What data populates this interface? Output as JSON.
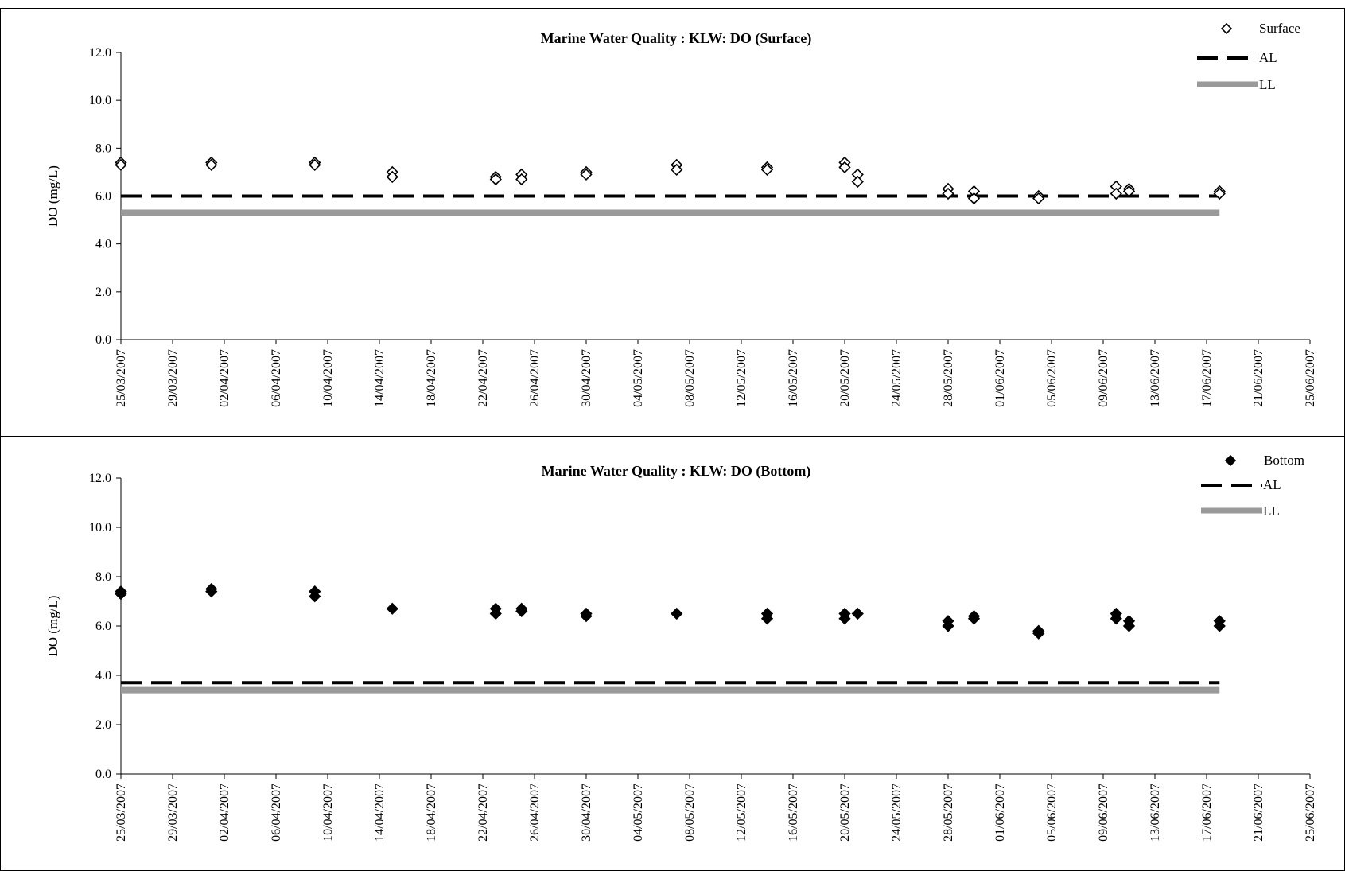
{
  "chart_data": [
    {
      "type": "scatter",
      "title": "Marine Water Quality : KLW: DO (Surface)",
      "xlabel": "",
      "ylabel": "DO (mg/L)",
      "ylim": [
        0,
        12
      ],
      "yticks": [
        "0.0",
        "2.0",
        "4.0",
        "6.0",
        "8.0",
        "10.0",
        "12.0"
      ],
      "xlim": [
        "25/03/2007",
        "25/06/2007"
      ],
      "xticks": [
        "25/03/2007",
        "29/03/2007",
        "02/04/2007",
        "06/04/2007",
        "10/04/2007",
        "14/04/2007",
        "18/04/2007",
        "22/04/2007",
        "26/04/2007",
        "30/04/2007",
        "04/05/2007",
        "08/05/2007",
        "12/05/2007",
        "16/05/2007",
        "20/05/2007",
        "24/05/2007",
        "28/05/2007",
        "01/06/2007",
        "05/06/2007",
        "09/06/2007",
        "13/06/2007",
        "17/06/2007",
        "21/06/2007",
        "25/06/2007"
      ],
      "grid": false,
      "legend": "top-right",
      "legend_entries": [
        "Surface",
        "AL",
        "LL"
      ],
      "marker": "open-diamond",
      "series": [
        {
          "name": "Surface",
          "x": [
            "25/03/2007",
            "25/03/2007",
            "01/04/2007",
            "01/04/2007",
            "09/04/2007",
            "09/04/2007",
            "15/04/2007",
            "15/04/2007",
            "23/04/2007",
            "23/04/2007",
            "25/04/2007",
            "25/04/2007",
            "30/04/2007",
            "30/04/2007",
            "07/05/2007",
            "07/05/2007",
            "14/05/2007",
            "14/05/2007",
            "20/05/2007",
            "20/05/2007",
            "21/05/2007",
            "21/05/2007",
            "28/05/2007",
            "28/05/2007",
            "30/05/2007",
            "30/05/2007",
            "04/06/2007",
            "04/06/2007",
            "10/06/2007",
            "10/06/2007",
            "11/06/2007",
            "11/06/2007",
            "18/06/2007",
            "18/06/2007"
          ],
          "y": [
            7.4,
            7.3,
            7.4,
            7.3,
            7.4,
            7.3,
            7.0,
            6.8,
            6.8,
            6.7,
            6.9,
            6.7,
            7.0,
            6.9,
            7.3,
            7.1,
            7.2,
            7.1,
            7.4,
            7.2,
            6.9,
            6.6,
            6.3,
            6.1,
            6.2,
            5.9,
            6.0,
            5.9,
            6.4,
            6.1,
            6.3,
            6.2,
            6.2,
            6.1
          ]
        },
        {
          "name": "AL",
          "x": [
            "25/03/2007",
            "18/06/2007"
          ],
          "y": [
            6.0,
            6.0
          ]
        },
        {
          "name": "LL",
          "x": [
            "25/03/2007",
            "18/06/2007"
          ],
          "y": [
            5.3,
            5.3
          ]
        }
      ]
    },
    {
      "type": "scatter",
      "title": "Marine Water Quality : KLW: DO (Bottom)",
      "xlabel": "",
      "ylabel": "DO (mg/L)",
      "ylim": [
        0,
        12
      ],
      "yticks": [
        "0.0",
        "2.0",
        "4.0",
        "6.0",
        "8.0",
        "10.0",
        "12.0"
      ],
      "xlim": [
        "25/03/2007",
        "25/06/2007"
      ],
      "xticks": [
        "25/03/2007",
        "29/03/2007",
        "02/04/2007",
        "06/04/2007",
        "10/04/2007",
        "14/04/2007",
        "18/04/2007",
        "22/04/2007",
        "26/04/2007",
        "30/04/2007",
        "04/05/2007",
        "08/05/2007",
        "12/05/2007",
        "16/05/2007",
        "20/05/2007",
        "24/05/2007",
        "28/05/2007",
        "01/06/2007",
        "05/06/2007",
        "09/06/2007",
        "13/06/2007",
        "17/06/2007",
        "21/06/2007",
        "25/06/2007"
      ],
      "grid": false,
      "legend": "top-right",
      "legend_entries": [
        "Bottom",
        "AL",
        "LL"
      ],
      "marker": "filled-diamond",
      "series": [
        {
          "name": "Bottom",
          "x": [
            "25/03/2007",
            "25/03/2007",
            "01/04/2007",
            "01/04/2007",
            "09/04/2007",
            "09/04/2007",
            "15/04/2007",
            "23/04/2007",
            "23/04/2007",
            "25/04/2007",
            "25/04/2007",
            "30/04/2007",
            "30/04/2007",
            "07/05/2007",
            "14/05/2007",
            "14/05/2007",
            "20/05/2007",
            "20/05/2007",
            "21/05/2007",
            "28/05/2007",
            "28/05/2007",
            "30/05/2007",
            "30/05/2007",
            "04/06/2007",
            "04/06/2007",
            "10/06/2007",
            "10/06/2007",
            "11/06/2007",
            "11/06/2007",
            "18/06/2007",
            "18/06/2007"
          ],
          "y": [
            7.4,
            7.3,
            7.5,
            7.4,
            7.4,
            7.2,
            6.7,
            6.7,
            6.5,
            6.7,
            6.6,
            6.5,
            6.4,
            6.5,
            6.5,
            6.3,
            6.5,
            6.3,
            6.5,
            6.2,
            6.0,
            6.4,
            6.3,
            5.8,
            5.7,
            6.5,
            6.3,
            6.2,
            6.0,
            6.2,
            6.0
          ]
        },
        {
          "name": "AL",
          "x": [
            "25/03/2007",
            "18/06/2007"
          ],
          "y": [
            3.7,
            3.7
          ]
        },
        {
          "name": "LL",
          "x": [
            "25/03/2007",
            "18/06/2007"
          ],
          "y": [
            3.4,
            3.4
          ]
        }
      ]
    }
  ]
}
